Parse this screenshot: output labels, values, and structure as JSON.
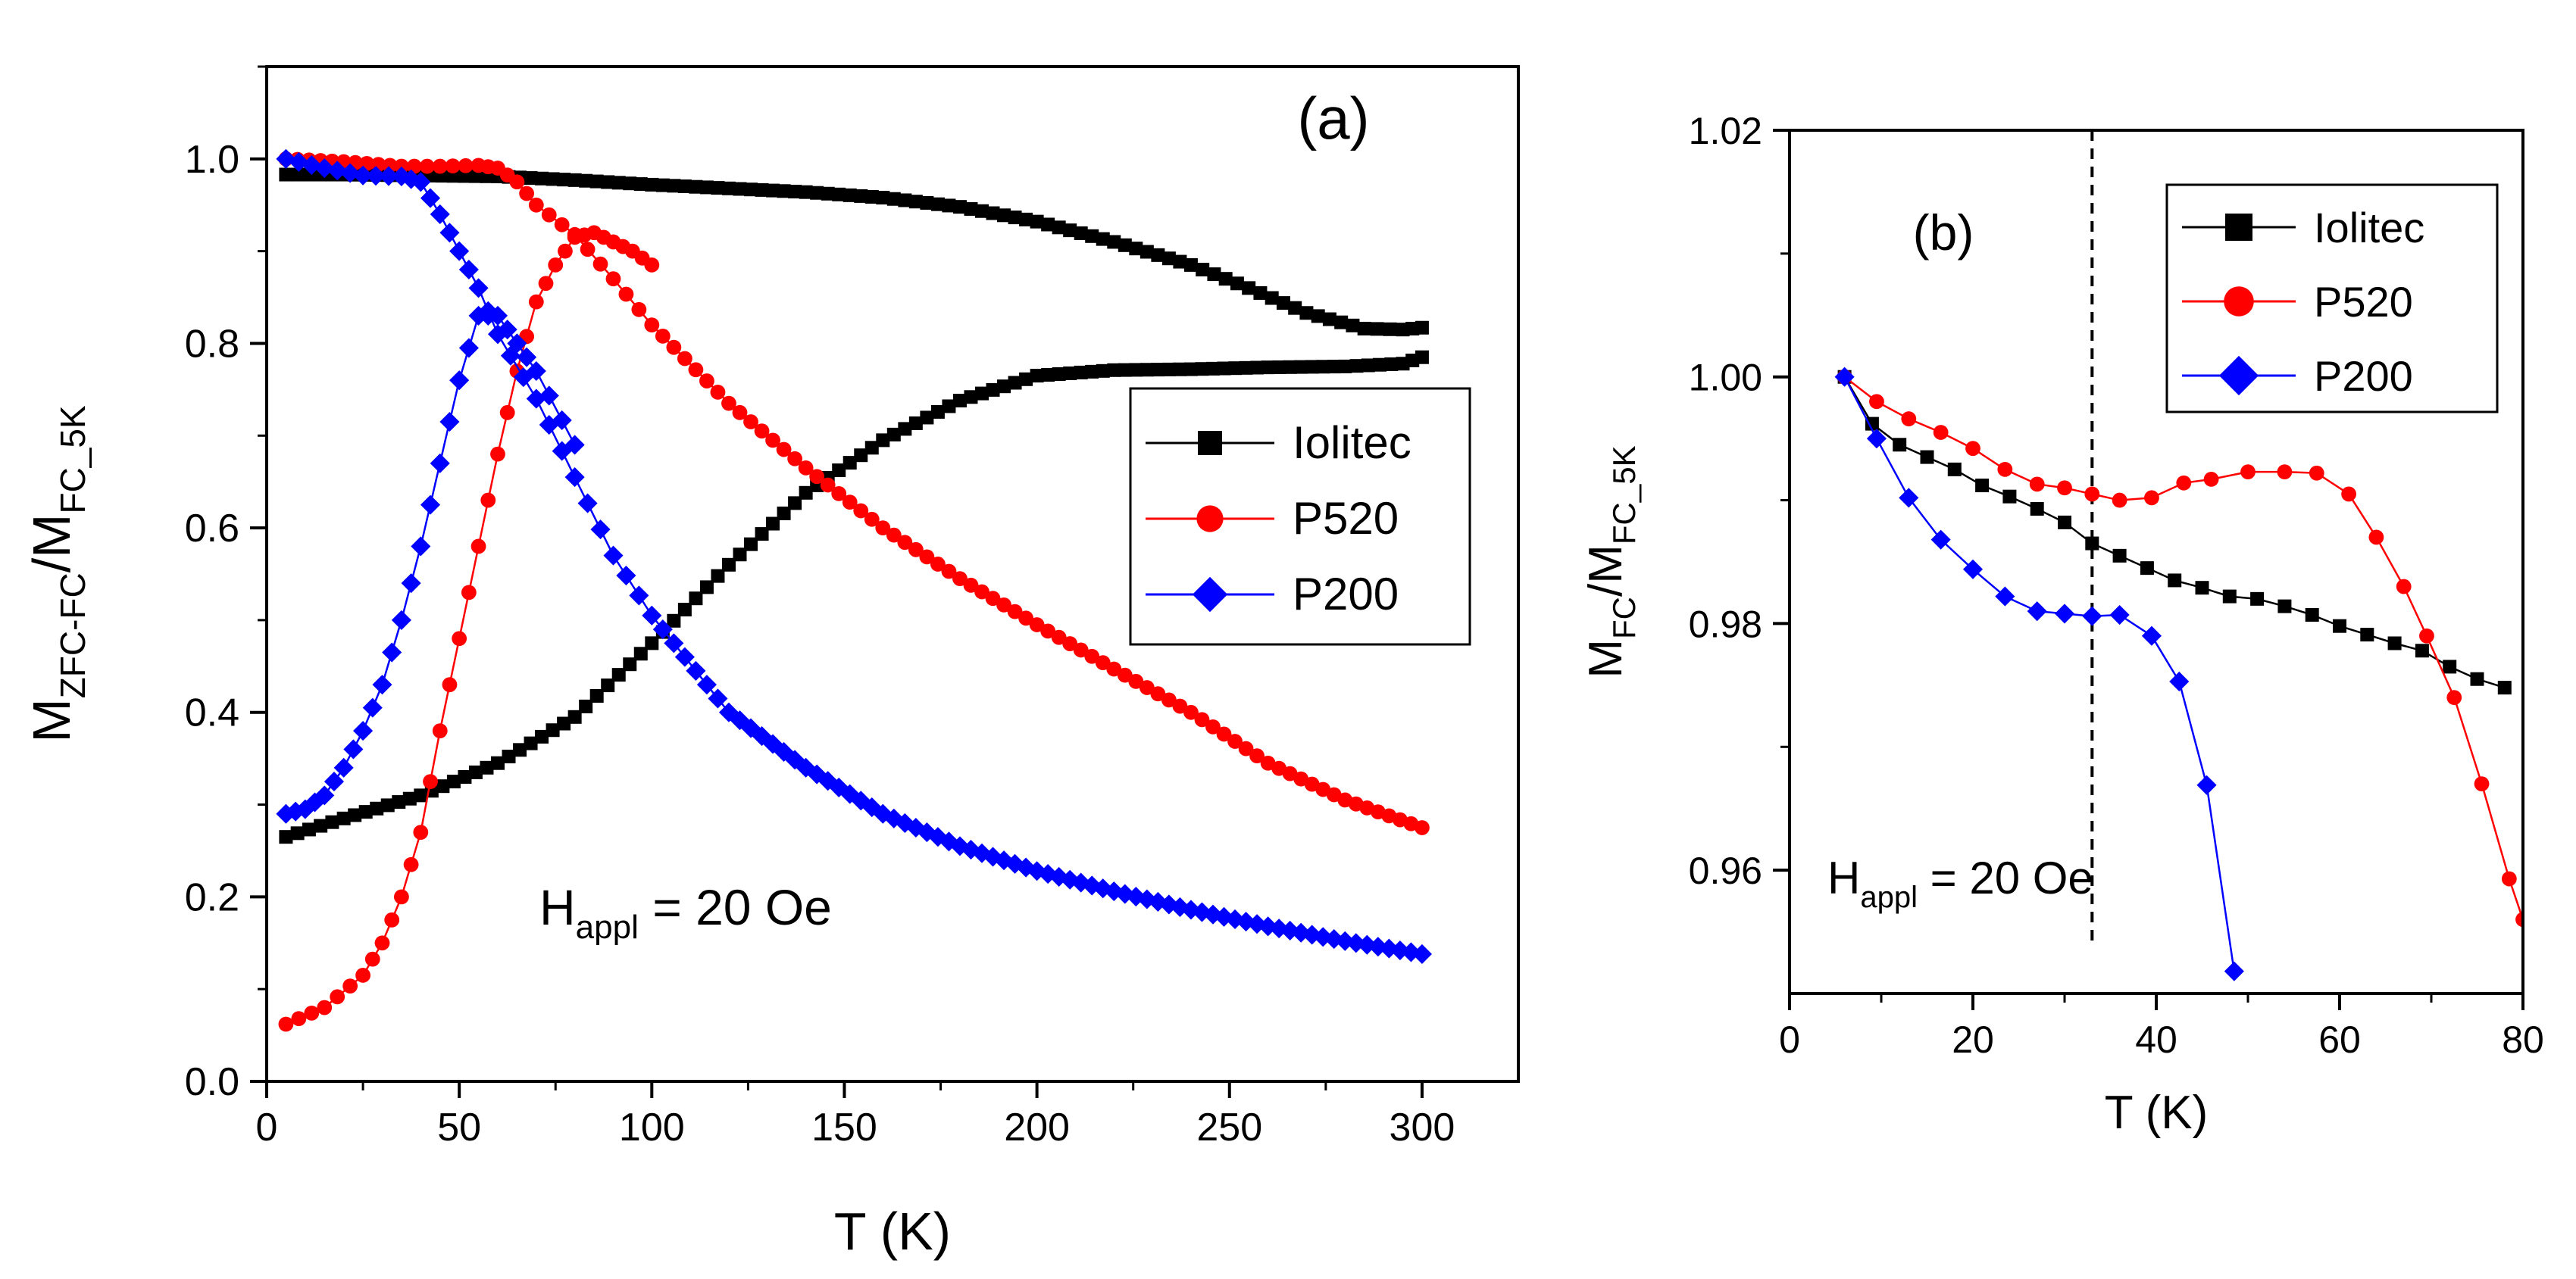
{
  "chart_data": [
    {
      "panel_label": "(a)",
      "type": "line",
      "xlabel": "T (K)",
      "ylabel": {
        "base": "M",
        "sub1": "ZFC-FC",
        "mid": "/M",
        "sub2": "FC_5K"
      },
      "xlim": [
        0,
        325
      ],
      "ylim": [
        0.0,
        1.1
      ],
      "xticks": [
        0,
        50,
        100,
        150,
        200,
        250,
        300
      ],
      "xtick_labels": [
        "0",
        "50",
        "100",
        "150",
        "200",
        "250",
        "300"
      ],
      "yticks": [
        0.0,
        0.2,
        0.4,
        0.6,
        0.8,
        1.0
      ],
      "ytick_labels": [
        "0.0",
        "0.2",
        "0.4",
        "0.6",
        "0.8",
        "1.0"
      ],
      "annotation": {
        "base": "H",
        "sub": "appl",
        "rest": " = 20 Oe"
      },
      "legend": {
        "placement": "right",
        "entries": [
          "Iolitec",
          "P520",
          "P200"
        ]
      },
      "series": [
        {
          "name": "Iolitec",
          "color": "#000000",
          "marker": "square",
          "branches": [
            {
              "label": "FC",
              "points": [
                [
                  5,
                  0.983
                ],
                [
                  20,
                  0.983
                ],
                [
                  40,
                  0.982
                ],
                [
                  60,
                  0.981
                ],
                [
                  80,
                  0.977
                ],
                [
                  100,
                  0.972
                ],
                [
                  120,
                  0.968
                ],
                [
                  140,
                  0.964
                ],
                [
                  160,
                  0.958
                ],
                [
                  180,
                  0.948
                ],
                [
                  200,
                  0.932
                ],
                [
                  220,
                  0.91
                ],
                [
                  240,
                  0.885
                ],
                [
                  255,
                  0.86
                ],
                [
                  270,
                  0.833
                ],
                [
                  285,
                  0.816
                ],
                [
                  295,
                  0.815
                ],
                [
                  300,
                  0.817
                ]
              ]
            },
            {
              "label": "ZFC",
              "points": [
                [
                  5,
                  0.265
                ],
                [
                  20,
                  0.285
                ],
                [
                  40,
                  0.31
                ],
                [
                  60,
                  0.345
                ],
                [
                  80,
                  0.395
                ],
                [
                  100,
                  0.475
                ],
                [
                  120,
                  0.56
                ],
                [
                  140,
                  0.638
                ],
                [
                  160,
                  0.695
                ],
                [
                  180,
                  0.738
                ],
                [
                  200,
                  0.765
                ],
                [
                  220,
                  0.771
                ],
                [
                  240,
                  0.772
                ],
                [
                  260,
                  0.774
                ],
                [
                  280,
                  0.775
                ],
                [
                  295,
                  0.778
                ],
                [
                  300,
                  0.785
                ]
              ]
            }
          ]
        },
        {
          "name": "P520",
          "color": "#ff0000",
          "marker": "circle",
          "branches": [
            {
              "label": "FC",
              "points": [
                [
                  5,
                  1.0
                ],
                [
                  20,
                  0.997
                ],
                [
                  35,
                  0.992
                ],
                [
                  45,
                  0.992
                ],
                [
                  55,
                  0.993
                ],
                [
                  60,
                  0.99
                ],
                [
                  65,
                  0.975
                ],
                [
                  70,
                  0.95
                ],
                [
                  80,
                  0.918
                ],
                [
                  90,
                  0.87
                ],
                [
                  100,
                  0.82
                ],
                [
                  120,
                  0.735
                ],
                [
                  140,
                  0.665
                ],
                [
                  160,
                  0.6
                ],
                [
                  180,
                  0.545
                ],
                [
                  200,
                  0.495
                ],
                [
                  220,
                  0.447
                ],
                [
                  240,
                  0.4
                ],
                [
                  260,
                  0.345
                ],
                [
                  280,
                  0.305
                ],
                [
                  300,
                  0.275
                ]
              ]
            },
            {
              "label": "ZFC",
              "points": [
                [
                  5,
                  0.062
                ],
                [
                  15,
                  0.08
                ],
                [
                  25,
                  0.115
                ],
                [
                  30,
                  0.15
                ],
                [
                  35,
                  0.2
                ],
                [
                  40,
                  0.27
                ],
                [
                  45,
                  0.38
                ],
                [
                  50,
                  0.48
                ],
                [
                  55,
                  0.58
                ],
                [
                  60,
                  0.68
                ],
                [
                  65,
                  0.77
                ],
                [
                  70,
                  0.845
                ],
                [
                  75,
                  0.885
                ],
                [
                  80,
                  0.915
                ],
                [
                  85,
                  0.92
                ],
                [
                  90,
                  0.91
                ],
                [
                  95,
                  0.9
                ],
                [
                  100,
                  0.885
                ]
              ]
            }
          ]
        },
        {
          "name": "P200",
          "color": "#0000ff",
          "marker": "diamond",
          "branches": [
            {
              "label": "FC",
              "points": [
                [
                  5,
                  1.0
                ],
                [
                  15,
                  0.99
                ],
                [
                  25,
                  0.982
                ],
                [
                  35,
                  0.981
                ],
                [
                  40,
                  0.975
                ],
                [
                  45,
                  0.94
                ],
                [
                  50,
                  0.9
                ],
                [
                  55,
                  0.86
                ],
                [
                  60,
                  0.81
                ],
                [
                  70,
                  0.74
                ],
                [
                  80,
                  0.655
                ],
                [
                  90,
                  0.57
                ],
                [
                  100,
                  0.505
                ],
                [
                  120,
                  0.4
                ],
                [
                  140,
                  0.34
                ],
                [
                  160,
                  0.29
                ],
                [
                  180,
                  0.255
                ],
                [
                  200,
                  0.228
                ],
                [
                  220,
                  0.206
                ],
                [
                  240,
                  0.186
                ],
                [
                  260,
                  0.168
                ],
                [
                  280,
                  0.152
                ],
                [
                  300,
                  0.138
                ]
              ]
            },
            {
              "label": "ZFC",
              "points": [
                [
                  5,
                  0.29
                ],
                [
                  10,
                  0.295
                ],
                [
                  15,
                  0.31
                ],
                [
                  20,
                  0.34
                ],
                [
                  25,
                  0.38
                ],
                [
                  30,
                  0.43
                ],
                [
                  35,
                  0.5
                ],
                [
                  40,
                  0.58
                ],
                [
                  45,
                  0.67
                ],
                [
                  50,
                  0.76
                ],
                [
                  55,
                  0.83
                ],
                [
                  60,
                  0.83
                ],
                [
                  65,
                  0.8
                ],
                [
                  70,
                  0.77
                ],
                [
                  80,
                  0.69
                ]
              ]
            }
          ]
        }
      ]
    },
    {
      "panel_label": "(b)",
      "type": "line",
      "xlabel": "T (K)",
      "ylabel": {
        "base": "M",
        "sub1": "FC",
        "mid": "/M",
        "sub2": "FC_5K"
      },
      "xlim": [
        0,
        80
      ],
      "ylim": [
        0.95,
        1.02
      ],
      "xticks": [
        0,
        20,
        40,
        60,
        80
      ],
      "xtick_labels": [
        "0",
        "20",
        "40",
        "60",
        "80"
      ],
      "yticks": [
        0.96,
        0.98,
        1.0,
        1.02
      ],
      "ytick_labels": [
        "0.96",
        "0.98",
        "1.00",
        "1.02"
      ],
      "dashed_line_x": 33,
      "annotation": {
        "base": "H",
        "sub": "appl",
        "rest": " = 20 Oe"
      },
      "legend": {
        "placement": "top-right",
        "entries": [
          "Iolitec",
          "P520",
          "P200"
        ]
      },
      "series": [
        {
          "name": "Iolitec",
          "color": "#000000",
          "marker": "square",
          "points": [
            [
              6,
              1.0
            ],
            [
              9,
              0.9962
            ],
            [
              12,
              0.9945
            ],
            [
              15,
              0.9935
            ],
            [
              18,
              0.9925
            ],
            [
              21,
              0.9912
            ],
            [
              24,
              0.9903
            ],
            [
              27,
              0.9893
            ],
            [
              30,
              0.9882
            ],
            [
              33,
              0.9865
            ],
            [
              36,
              0.9855
            ],
            [
              39,
              0.9845
            ],
            [
              42,
              0.9835
            ],
            [
              45,
              0.9829
            ],
            [
              48,
              0.9822
            ],
            [
              51,
              0.982
            ],
            [
              54,
              0.9814
            ],
            [
              57,
              0.9807
            ],
            [
              60,
              0.9798
            ],
            [
              63,
              0.9791
            ],
            [
              66,
              0.9784
            ],
            [
              69,
              0.9778
            ],
            [
              72,
              0.9765
            ],
            [
              75,
              0.9755
            ],
            [
              78,
              0.9748
            ]
          ]
        },
        {
          "name": "P520",
          "color": "#ff0000",
          "marker": "circle",
          "points": [
            [
              6,
              1.0
            ],
            [
              9.5,
              0.998
            ],
            [
              13,
              0.9966
            ],
            [
              16.5,
              0.9955
            ],
            [
              20,
              0.9942
            ],
            [
              23.5,
              0.9925
            ],
            [
              27,
              0.9913
            ],
            [
              30,
              0.991
            ],
            [
              33,
              0.9905
            ],
            [
              36,
              0.99
            ],
            [
              39.5,
              0.9902
            ],
            [
              43,
              0.9914
            ],
            [
              46,
              0.9917
            ],
            [
              50,
              0.9923
            ],
            [
              54,
              0.9923
            ],
            [
              57.5,
              0.9922
            ],
            [
              61,
              0.9905
            ],
            [
              64,
              0.987
            ],
            [
              67,
              0.983
            ],
            [
              69.5,
              0.979
            ],
            [
              72.5,
              0.974
            ],
            [
              75.5,
              0.967
            ],
            [
              78.5,
              0.9593
            ],
            [
              80,
              0.956
            ]
          ]
        },
        {
          "name": "P200",
          "color": "#0000ff",
          "marker": "diamond",
          "points": [
            [
              6,
              1.0
            ],
            [
              9.5,
              0.995
            ],
            [
              13,
              0.9902
            ],
            [
              16.5,
              0.9868
            ],
            [
              20,
              0.9844
            ],
            [
              23.5,
              0.9822
            ],
            [
              27,
              0.981
            ],
            [
              30,
              0.9808
            ],
            [
              33,
              0.9806
            ],
            [
              36,
              0.9807
            ],
            [
              39.5,
              0.979
            ],
            [
              42.5,
              0.9753
            ],
            [
              45.5,
              0.9669
            ],
            [
              48.5,
              0.9518
            ]
          ]
        }
      ]
    }
  ]
}
